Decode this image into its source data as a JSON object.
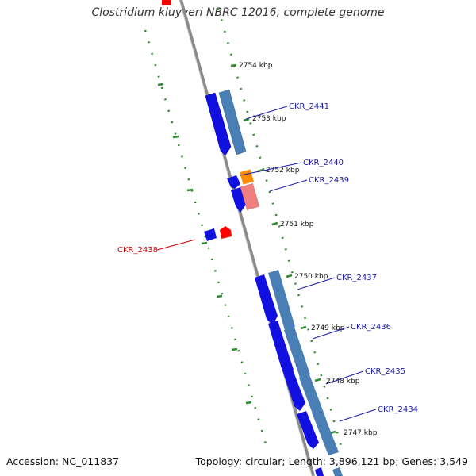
{
  "header": {
    "title": "Clostridium kluyveri NBRC 12016, complete genome"
  },
  "footer": {
    "accession": "Accession: NC_011837",
    "summary": "Topology: circular; Length: 3,896,121 bp; Genes: 3,549"
  },
  "ticks": [
    {
      "label": "2754 kbp"
    },
    {
      "label": "2753 kbp"
    },
    {
      "label": "2752 kbp"
    },
    {
      "label": "2751 kbp"
    },
    {
      "label": "2750 kbp"
    },
    {
      "label": "2749 kbp"
    },
    {
      "label": "2748 kbp"
    },
    {
      "label": "2747 kbp"
    }
  ],
  "genes": [
    {
      "label": "CKR_2441"
    },
    {
      "label": "CKR_2440"
    },
    {
      "label": "CKR_2439"
    },
    {
      "label": "CKR_2438"
    },
    {
      "label": "CKR_2437"
    },
    {
      "label": "CKR_2436"
    },
    {
      "label": "CKR_2435"
    },
    {
      "label": "CKR_2434"
    }
  ],
  "colors": {
    "backbone": "#8a8a8a",
    "tick_ring": "#2e8b2e",
    "cds_strand": "#1010e0",
    "cds_feature": "#4a7fb5",
    "trna": "#ff8c00",
    "rrna": "#f08080",
    "label_plus": "#1a1aaa",
    "label_minus": "#cc0000"
  }
}
